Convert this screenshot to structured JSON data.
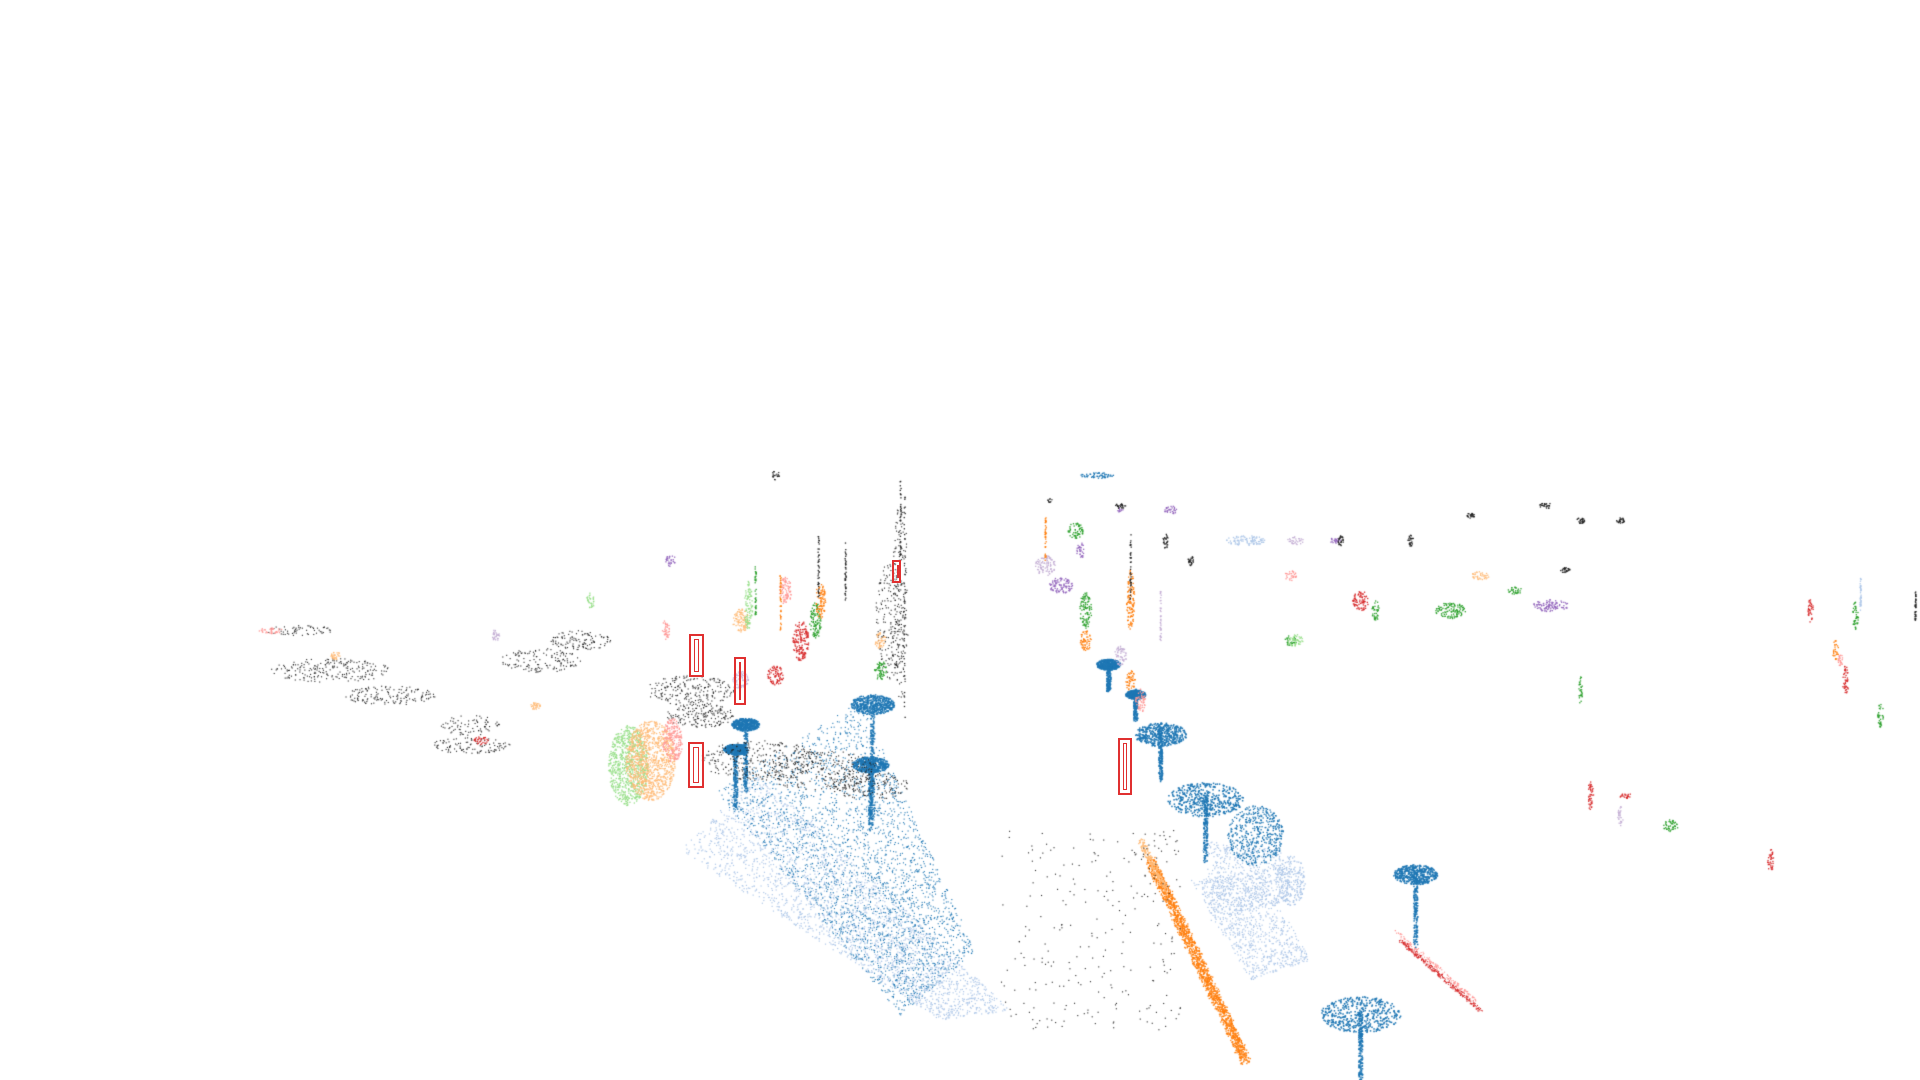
{
  "scene": {
    "background": "#ffffff",
    "bbox_color": "#e03030",
    "palette": {
      "ground_light": "#aec7e8",
      "ground_dark": "#1f77b4",
      "orange": "#ff7f0e",
      "light_orange": "#ffbb78",
      "green": "#2ca02c",
      "light_green": "#98df8a",
      "red": "#d62728",
      "pink": "#ff9896",
      "purple": "#9467bd",
      "lavender": "#c5b0d5",
      "gray": "#7f7f7f",
      "black": "#222222"
    },
    "bounding_box_count": 5
  }
}
